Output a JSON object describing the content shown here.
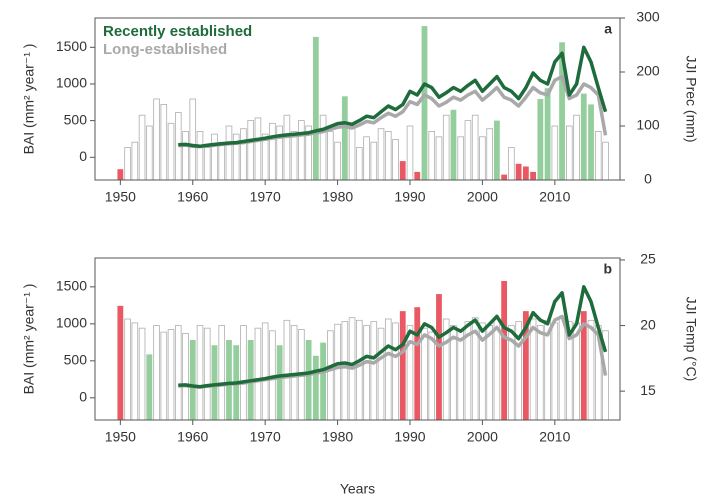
{
  "chart_data": [
    {
      "type": "bar_line",
      "panel": "a",
      "ylabel": "BAI (mm² year⁻¹ )",
      "y2label": "JJI Prec (mm)",
      "xlim": [
        1946.5,
        2019
      ],
      "xticks": [
        1950,
        1960,
        1970,
        1980,
        1990,
        2000,
        2010
      ],
      "ylim": [
        -310,
        1900
      ],
      "yticks": [
        0,
        500,
        1000,
        1500
      ],
      "y2lim": [
        0,
        300
      ],
      "y2ticks": [
        0,
        100,
        200,
        300
      ],
      "bars": {
        "axis": "y2",
        "x": [
          1950,
          1951,
          1952,
          1953,
          1954,
          1955,
          1956,
          1957,
          1958,
          1959,
          1960,
          1961,
          1962,
          1963,
          1964,
          1965,
          1966,
          1967,
          1968,
          1969,
          1970,
          1971,
          1972,
          1973,
          1974,
          1975,
          1976,
          1977,
          1978,
          1979,
          1980,
          1981,
          1982,
          1983,
          1984,
          1985,
          1986,
          1987,
          1988,
          1989,
          1990,
          1991,
          1992,
          1993,
          1994,
          1995,
          1996,
          1997,
          1998,
          1999,
          2000,
          2001,
          2002,
          2003,
          2004,
          2005,
          2006,
          2007,
          2008,
          2009,
          2010,
          2011,
          2012,
          2013,
          2014,
          2015,
          2016,
          2017
        ],
        "values": [
          20,
          60,
          70,
          120,
          100,
          150,
          140,
          105,
          125,
          90,
          150,
          90,
          60,
          85,
          70,
          100,
          85,
          95,
          110,
          115,
          85,
          105,
          100,
          120,
          90,
          110,
          100,
          265,
          120,
          90,
          70,
          155,
          100,
          60,
          80,
          70,
          95,
          90,
          75,
          35,
          100,
          15,
          285,
          90,
          80,
          120,
          130,
          80,
          110,
          120,
          80,
          95,
          110,
          10,
          60,
          30,
          25,
          15,
          150,
          170,
          100,
          255,
          100,
          120,
          160,
          140,
          90,
          70
        ],
        "colors": [
          "#e8505b",
          "#ffffff",
          "#ffffff",
          "#ffffff",
          "#ffffff",
          "#ffffff",
          "#ffffff",
          "#ffffff",
          "#ffffff",
          "#ffffff",
          "#ffffff",
          "#ffffff",
          "#ffffff",
          "#ffffff",
          "#ffffff",
          "#ffffff",
          "#ffffff",
          "#ffffff",
          "#ffffff",
          "#ffffff",
          "#ffffff",
          "#ffffff",
          "#ffffff",
          "#ffffff",
          "#ffffff",
          "#ffffff",
          "#ffffff",
          "#8fcb98",
          "#ffffff",
          "#ffffff",
          "#ffffff",
          "#8fcb98",
          "#ffffff",
          "#ffffff",
          "#ffffff",
          "#ffffff",
          "#ffffff",
          "#ffffff",
          "#ffffff",
          "#e8505b",
          "#ffffff",
          "#e8505b",
          "#8fcb98",
          "#ffffff",
          "#ffffff",
          "#ffffff",
          "#8fcb98",
          "#ffffff",
          "#ffffff",
          "#ffffff",
          "#ffffff",
          "#ffffff",
          "#8fcb98",
          "#e8505b",
          "#ffffff",
          "#e8505b",
          "#e8505b",
          "#e8505b",
          "#8fcb98",
          "#8fcb98",
          "#ffffff",
          "#8fcb98",
          "#ffffff",
          "#ffffff",
          "#8fcb98",
          "#8fcb98",
          "#ffffff",
          "#ffffff"
        ]
      },
      "series": [
        {
          "name": "Recently established",
          "color": "#1e6b3c",
          "x": [
            1958,
            1959,
            1960,
            1961,
            1962,
            1963,
            1964,
            1965,
            1966,
            1967,
            1968,
            1969,
            1970,
            1971,
            1972,
            1973,
            1974,
            1975,
            1976,
            1977,
            1978,
            1979,
            1980,
            1981,
            1982,
            1983,
            1984,
            1985,
            1986,
            1987,
            1988,
            1989,
            1990,
            1991,
            1992,
            1993,
            1994,
            1995,
            1996,
            1997,
            1998,
            1999,
            2000,
            2001,
            2002,
            2003,
            2004,
            2005,
            2006,
            2007,
            2008,
            2009,
            2010,
            2011,
            2012,
            2013,
            2014,
            2015,
            2016,
            2017
          ],
          "values": [
            170,
            175,
            160,
            150,
            165,
            175,
            185,
            195,
            200,
            215,
            230,
            245,
            260,
            280,
            295,
            305,
            315,
            325,
            335,
            360,
            380,
            420,
            460,
            470,
            450,
            500,
            560,
            540,
            620,
            700,
            650,
            720,
            900,
            850,
            1000,
            950,
            820,
            880,
            950,
            900,
            980,
            1050,
            900,
            1000,
            1100,
            950,
            900,
            800,
            950,
            1150,
            1050,
            1000,
            1300,
            1420,
            850,
            1000,
            1500,
            1300,
            950,
            620
          ]
        },
        {
          "name": "Long-established",
          "color": "#a9a9a9",
          "x": [
            1958,
            1959,
            1960,
            1961,
            1962,
            1963,
            1964,
            1965,
            1966,
            1967,
            1968,
            1969,
            1970,
            1971,
            1972,
            1973,
            1974,
            1975,
            1976,
            1977,
            1978,
            1979,
            1980,
            1981,
            1982,
            1983,
            1984,
            1985,
            1986,
            1987,
            1988,
            1989,
            1990,
            1991,
            1992,
            1993,
            1994,
            1995,
            1996,
            1997,
            1998,
            1999,
            2000,
            2001,
            2002,
            2003,
            2004,
            2005,
            2006,
            2007,
            2008,
            2009,
            2010,
            2011,
            2012,
            2013,
            2014,
            2015,
            2016,
            2017
          ],
          "values": [
            160,
            165,
            150,
            145,
            155,
            165,
            175,
            185,
            190,
            200,
            215,
            230,
            245,
            260,
            275,
            285,
            295,
            305,
            315,
            335,
            350,
            380,
            410,
            420,
            400,
            440,
            490,
            470,
            540,
            600,
            560,
            620,
            760,
            720,
            850,
            800,
            700,
            750,
            820,
            780,
            850,
            900,
            780,
            860,
            950,
            820,
            780,
            700,
            820,
            950,
            880,
            850,
            1050,
            1100,
            800,
            850,
            1000,
            950,
            850,
            300
          ]
        }
      ]
    },
    {
      "type": "bar_line",
      "panel": "b",
      "ylabel": "BAI (mm² year⁻¹ )",
      "y2label": "JJI Temp (°C)",
      "xlabel": "Years",
      "xlim": [
        1946.5,
        2019
      ],
      "xticks": [
        1950,
        1960,
        1970,
        1980,
        1990,
        2000,
        2010
      ],
      "ylim": [
        -300,
        1890
      ],
      "yticks": [
        0,
        500,
        1000,
        1500
      ],
      "y2lim": [
        12.8,
        25.15
      ],
      "y2ticks": [
        15,
        20,
        25
      ],
      "bars": {
        "axis": "y2",
        "x": [
          1950,
          1951,
          1952,
          1953,
          1954,
          1955,
          1956,
          1957,
          1958,
          1959,
          1960,
          1961,
          1962,
          1963,
          1964,
          1965,
          1966,
          1967,
          1968,
          1969,
          1970,
          1971,
          1972,
          1973,
          1974,
          1975,
          1976,
          1977,
          1978,
          1979,
          1980,
          1981,
          1982,
          1983,
          1984,
          1985,
          1986,
          1987,
          1988,
          1989,
          1990,
          1991,
          1992,
          1993,
          1994,
          1995,
          1996,
          1997,
          1998,
          1999,
          2000,
          2001,
          2002,
          2003,
          2004,
          2005,
          2006,
          2007,
          2008,
          2009,
          2010,
          2011,
          2012,
          2013,
          2014,
          2015,
          2016,
          2017
        ],
        "values": [
          21.5,
          20.5,
          20.2,
          19.8,
          17.8,
          20.0,
          19.5,
          19.7,
          20.0,
          19.4,
          18.9,
          20.0,
          19.8,
          18.5,
          20.0,
          18.9,
          18.5,
          20.0,
          18.9,
          19.8,
          20.2,
          19.6,
          18.5,
          20.4,
          20.0,
          19.7,
          18.9,
          17.7,
          18.7,
          19.6,
          20.1,
          20.3,
          20.6,
          20.4,
          20.0,
          20.3,
          19.8,
          20.5,
          20.2,
          21.1,
          20.0,
          21.4,
          19.8,
          19.5,
          22.4,
          20.5,
          20.0,
          19.7,
          20.3,
          20.6,
          20.2,
          20.0,
          20.5,
          23.4,
          20.0,
          20.3,
          21.1,
          20.5,
          20.0,
          20.4,
          20.2,
          20.6,
          20.3,
          20.2,
          21.1,
          20.4,
          20.0,
          19.6
        ],
        "colors": [
          "#e8505b",
          "#ffffff",
          "#ffffff",
          "#ffffff",
          "#8fcb98",
          "#ffffff",
          "#ffffff",
          "#ffffff",
          "#ffffff",
          "#ffffff",
          "#8fcb98",
          "#ffffff",
          "#ffffff",
          "#8fcb98",
          "#ffffff",
          "#8fcb98",
          "#8fcb98",
          "#ffffff",
          "#8fcb98",
          "#ffffff",
          "#ffffff",
          "#ffffff",
          "#8fcb98",
          "#ffffff",
          "#ffffff",
          "#ffffff",
          "#8fcb98",
          "#8fcb98",
          "#8fcb98",
          "#ffffff",
          "#ffffff",
          "#ffffff",
          "#ffffff",
          "#ffffff",
          "#ffffff",
          "#ffffff",
          "#ffffff",
          "#ffffff",
          "#ffffff",
          "#e8505b",
          "#ffffff",
          "#e8505b",
          "#ffffff",
          "#ffffff",
          "#e8505b",
          "#ffffff",
          "#ffffff",
          "#ffffff",
          "#ffffff",
          "#ffffff",
          "#ffffff",
          "#ffffff",
          "#ffffff",
          "#e8505b",
          "#ffffff",
          "#ffffff",
          "#e8505b",
          "#ffffff",
          "#ffffff",
          "#ffffff",
          "#ffffff",
          "#ffffff",
          "#ffffff",
          "#ffffff",
          "#e8505b",
          "#ffffff",
          "#ffffff",
          "#ffffff"
        ]
      },
      "series": [
        {
          "name": "Recently established",
          "color": "#1e6b3c",
          "x": [
            1958,
            1959,
            1960,
            1961,
            1962,
            1963,
            1964,
            1965,
            1966,
            1967,
            1968,
            1969,
            1970,
            1971,
            1972,
            1973,
            1974,
            1975,
            1976,
            1977,
            1978,
            1979,
            1980,
            1981,
            1982,
            1983,
            1984,
            1985,
            1986,
            1987,
            1988,
            1989,
            1990,
            1991,
            1992,
            1993,
            1994,
            1995,
            1996,
            1997,
            1998,
            1999,
            2000,
            2001,
            2002,
            2003,
            2004,
            2005,
            2006,
            2007,
            2008,
            2009,
            2010,
            2011,
            2012,
            2013,
            2014,
            2015,
            2016,
            2017
          ],
          "values": [
            170,
            175,
            160,
            150,
            165,
            175,
            185,
            195,
            200,
            215,
            230,
            245,
            260,
            280,
            295,
            305,
            315,
            325,
            335,
            360,
            380,
            420,
            460,
            470,
            450,
            500,
            560,
            540,
            620,
            700,
            650,
            720,
            900,
            850,
            1000,
            950,
            820,
            880,
            950,
            900,
            980,
            1050,
            900,
            1000,
            1100,
            950,
            900,
            800,
            950,
            1150,
            1050,
            1000,
            1300,
            1420,
            850,
            1000,
            1500,
            1300,
            950,
            620
          ]
        },
        {
          "name": "Long-established",
          "color": "#a9a9a9",
          "x": [
            1958,
            1959,
            1960,
            1961,
            1962,
            1963,
            1964,
            1965,
            1966,
            1967,
            1968,
            1969,
            1970,
            1971,
            1972,
            1973,
            1974,
            1975,
            1976,
            1977,
            1978,
            1979,
            1980,
            1981,
            1982,
            1983,
            1984,
            1985,
            1986,
            1987,
            1988,
            1989,
            1990,
            1991,
            1992,
            1993,
            1994,
            1995,
            1996,
            1997,
            1998,
            1999,
            2000,
            2001,
            2002,
            2003,
            2004,
            2005,
            2006,
            2007,
            2008,
            2009,
            2010,
            2011,
            2012,
            2013,
            2014,
            2015,
            2016,
            2017
          ],
          "values": [
            160,
            165,
            150,
            145,
            155,
            165,
            175,
            185,
            190,
            200,
            215,
            230,
            245,
            260,
            275,
            285,
            295,
            305,
            315,
            335,
            350,
            380,
            410,
            420,
            400,
            440,
            490,
            470,
            540,
            600,
            560,
            620,
            760,
            720,
            850,
            800,
            700,
            750,
            820,
            780,
            850,
            900,
            780,
            860,
            950,
            820,
            780,
            700,
            820,
            950,
            880,
            850,
            1050,
            1100,
            800,
            850,
            1000,
            950,
            850,
            300
          ]
        }
      ]
    }
  ]
}
